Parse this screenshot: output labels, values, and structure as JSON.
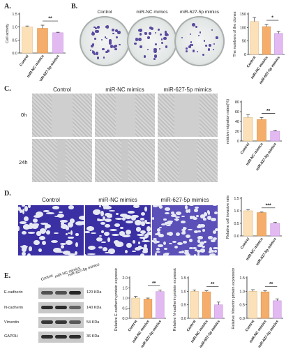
{
  "panels": {
    "A": "A.",
    "B": "B.",
    "C": "C.",
    "D": "D.",
    "E": "E."
  },
  "groups": [
    "Control",
    "miR-NC mimics",
    "miR-627-5p mimics"
  ],
  "row_labels": {
    "t0": "0h",
    "t24": "24h"
  },
  "blot": {
    "lane_labels": [
      "Control",
      "miR-NC mimics",
      "miR-627-5p mimics"
    ],
    "proteins": [
      "E-cadherin",
      "N-cadherin",
      "Vimentin",
      "GAPDH"
    ],
    "sizes": [
      "120 KDa",
      "140 KDa",
      "54 KDa",
      "36 KDa"
    ],
    "band_intensity": [
      [
        0.7,
        0.7,
        0.95
      ],
      [
        0.9,
        0.9,
        0.6
      ],
      [
        0.85,
        0.85,
        0.65
      ],
      [
        0.9,
        0.9,
        0.9
      ]
    ]
  },
  "colors": {
    "c1": "#fbe0b8",
    "c2": "#f4ad6a",
    "c3": "#e3b9f2",
    "edge1": "#d9b57f",
    "edge2": "#d08a40",
    "edge3": "#b98ad1"
  },
  "chart_data": [
    {
      "id": "A",
      "type": "bar",
      "ylabel": "Cell activity",
      "categories": [
        "Control",
        "miR-NC mimics",
        "miR-627-5p mimics"
      ],
      "values": [
        1.0,
        0.95,
        0.78
      ],
      "errors": [
        0.04,
        0.12,
        0.02
      ],
      "ylim": [
        0,
        1.5
      ],
      "yticks": [
        "0.0",
        "0.5",
        "1.0",
        "1.5"
      ],
      "sig": "**"
    },
    {
      "id": "B",
      "type": "bar",
      "ylabel": "The numbers of the clones",
      "categories": [
        "Control",
        "miR-NC mimics",
        "miR-627-5p mimics"
      ],
      "values": [
        122,
        103,
        78
      ],
      "errors": [
        15,
        8,
        7
      ],
      "ylim": [
        0,
        150
      ],
      "yticks": [
        "0",
        "50",
        "100",
        "150"
      ],
      "sig": "*"
    },
    {
      "id": "C",
      "type": "bar",
      "ylabel": "relative migration rates(%)",
      "categories": [
        "Control",
        "miR-NC mimics",
        "miR-627-5p mimics"
      ],
      "values": [
        48,
        44,
        20
      ],
      "errors": [
        6,
        4,
        2
      ],
      "ylim": [
        0,
        80
      ],
      "yticks": [
        "0",
        "20",
        "40",
        "60",
        "80"
      ],
      "sig": "**"
    },
    {
      "id": "D",
      "type": "bar",
      "ylabel": "Relative cell invasive rate",
      "categories": [
        "Control",
        "miR-NC mimics",
        "miR-627-5p mimics"
      ],
      "values": [
        1.0,
        0.93,
        0.5
      ],
      "errors": [
        0.05,
        0.02,
        0.04
      ],
      "ylim": [
        0,
        1.5
      ],
      "yticks": [
        "0.0",
        "0.5",
        "1.0",
        "1.5"
      ],
      "sig": "***"
    },
    {
      "id": "E1",
      "type": "bar",
      "ylabel": "Relative E-cadherin protein expression",
      "categories": [
        "Control",
        "miR-NC mimics",
        "miR-627-5p mimics"
      ],
      "values": [
        1.0,
        0.95,
        1.32
      ],
      "errors": [
        0.08,
        0.05,
        0.07
      ],
      "ylim": [
        0,
        2.0
      ],
      "yticks": [
        "0.0",
        "0.5",
        "1.0",
        "1.5",
        "2.0"
      ],
      "sig": "**"
    },
    {
      "id": "E2",
      "type": "bar",
      "ylabel": "Relative N-cadherin protein expression",
      "categories": [
        "Control",
        "miR-NC mimics",
        "miR-627-5p mimics"
      ],
      "values": [
        1.0,
        0.98,
        0.5
      ],
      "errors": [
        0.05,
        0.04,
        0.1
      ],
      "ylim": [
        0,
        1.5
      ],
      "yticks": [
        "0.0",
        "0.5",
        "1.0",
        "1.5"
      ],
      "sig": "**"
    },
    {
      "id": "E3",
      "type": "bar",
      "ylabel": "Relative Vimentin protein expression",
      "categories": [
        "Control",
        "miR-NC mimics",
        "miR-627-5p mimics"
      ],
      "values": [
        1.0,
        0.98,
        0.65
      ],
      "errors": [
        0.06,
        0.04,
        0.07
      ],
      "ylim": [
        0,
        1.5
      ],
      "yticks": [
        "0.0",
        "0.5",
        "1.0",
        "1.5"
      ],
      "sig": "**"
    }
  ]
}
